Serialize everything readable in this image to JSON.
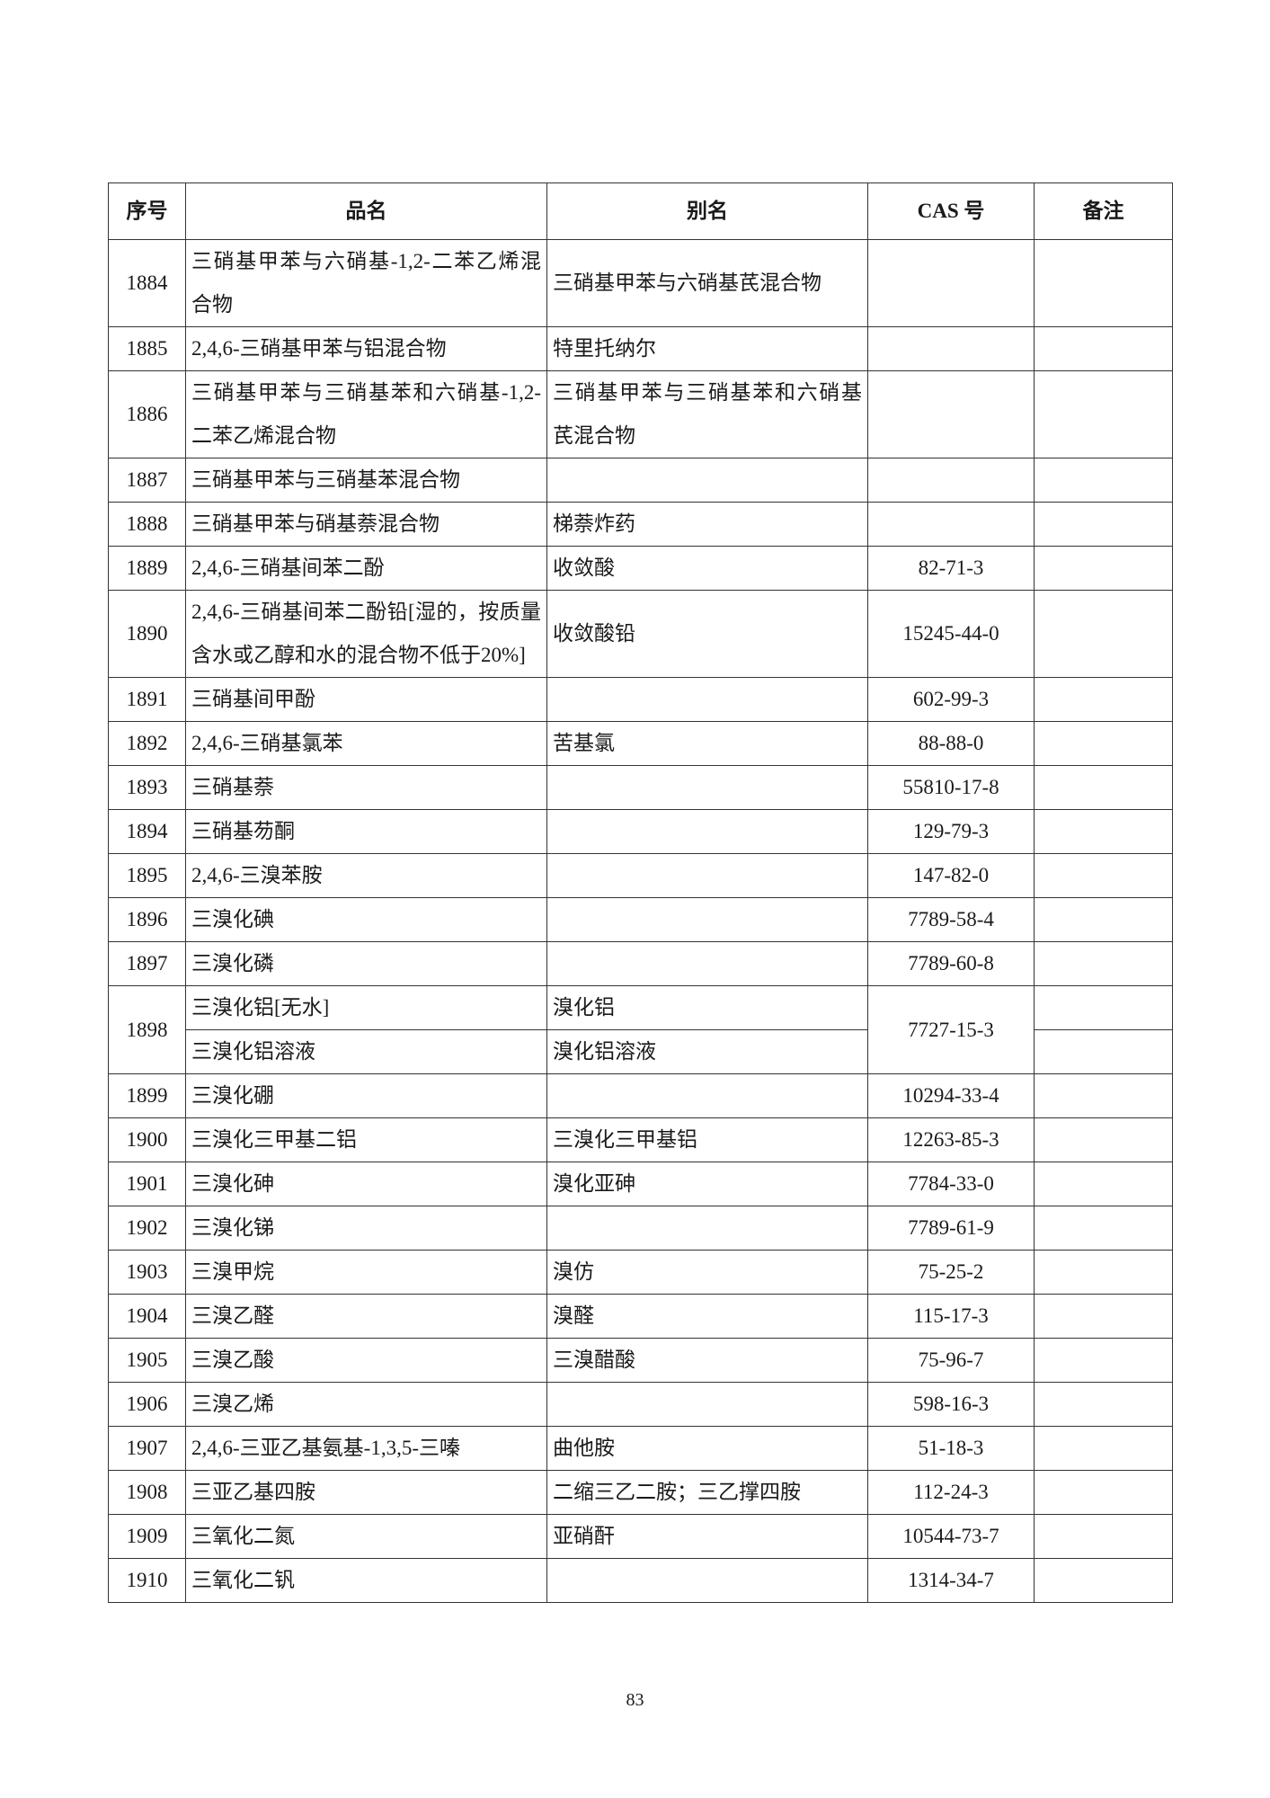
{
  "header": {
    "seq": "序号",
    "name": "品名",
    "alias": "别名",
    "cas": "CAS 号",
    "remark": "备注"
  },
  "rows": [
    {
      "seq": "1884",
      "name": "三硝基甲苯与六硝基-1,2-二苯乙烯混合物",
      "alias": "三硝基甲苯与六硝基芪混合物",
      "cas": "",
      "remark": ""
    },
    {
      "seq": "1885",
      "name": "2,4,6-三硝基甲苯与铝混合物",
      "alias": "特里托纳尔",
      "cas": "",
      "remark": ""
    },
    {
      "seq": "1886",
      "name": "三硝基甲苯与三硝基苯和六硝基-1,2-二苯乙烯混合物",
      "alias": "三硝基甲苯与三硝基苯和六硝基芪混合物",
      "cas": "",
      "remark": ""
    },
    {
      "seq": "1887",
      "name": "三硝基甲苯与三硝基苯混合物",
      "alias": "",
      "cas": "",
      "remark": ""
    },
    {
      "seq": "1888",
      "name": "三硝基甲苯与硝基萘混合物",
      "alias": "梯萘炸药",
      "cas": "",
      "remark": ""
    },
    {
      "seq": "1889",
      "name": "2,4,6-三硝基间苯二酚",
      "alias": "收敛酸",
      "cas": "82-71-3",
      "remark": ""
    },
    {
      "seq": "1890",
      "name": "2,4,6-三硝基间苯二酚铅[湿的，按质量含水或乙醇和水的混合物不低于20%]",
      "alias": "收敛酸铅",
      "cas": "15245-44-0",
      "remark": ""
    },
    {
      "seq": "1891",
      "name": "三硝基间甲酚",
      "alias": "",
      "cas": "602-99-3",
      "remark": ""
    },
    {
      "seq": "1892",
      "name": "2,4,6-三硝基氯苯",
      "alias": "苦基氯",
      "cas": "88-88-0",
      "remark": ""
    },
    {
      "seq": "1893",
      "name": "三硝基萘",
      "alias": "",
      "cas": "55810-17-8",
      "remark": ""
    },
    {
      "seq": "1894",
      "name": "三硝基芴酮",
      "alias": "",
      "cas": "129-79-3",
      "remark": ""
    },
    {
      "seq": "1895",
      "name": "2,4,6-三溴苯胺",
      "alias": "",
      "cas": "147-82-0",
      "remark": ""
    },
    {
      "seq": "1896",
      "name": "三溴化碘",
      "alias": "",
      "cas": "7789-58-4",
      "remark": ""
    },
    {
      "seq": "1897",
      "name": "三溴化磷",
      "alias": "",
      "cas": "7789-60-8",
      "remark": ""
    },
    {
      "seq": "1898",
      "cas": "7727-15-3",
      "sub": [
        {
          "name": "三溴化铝[无水]",
          "alias": "溴化铝",
          "remark": ""
        },
        {
          "name": "三溴化铝溶液",
          "alias": "溴化铝溶液",
          "remark": ""
        }
      ]
    },
    {
      "seq": "1899",
      "name": "三溴化硼",
      "alias": "",
      "cas": "10294-33-4",
      "remark": ""
    },
    {
      "seq": "1900",
      "name": "三溴化三甲基二铝",
      "alias": "三溴化三甲基铝",
      "cas": "12263-85-3",
      "remark": ""
    },
    {
      "seq": "1901",
      "name": "三溴化砷",
      "alias": "溴化亚砷",
      "cas": "7784-33-0",
      "remark": ""
    },
    {
      "seq": "1902",
      "name": "三溴化锑",
      "alias": "",
      "cas": "7789-61-9",
      "remark": ""
    },
    {
      "seq": "1903",
      "name": "三溴甲烷",
      "alias": "溴仿",
      "cas": "75-25-2",
      "remark": ""
    },
    {
      "seq": "1904",
      "name": "三溴乙醛",
      "alias": "溴醛",
      "cas": "115-17-3",
      "remark": ""
    },
    {
      "seq": "1905",
      "name": "三溴乙酸",
      "alias": "三溴醋酸",
      "cas": "75-96-7",
      "remark": ""
    },
    {
      "seq": "1906",
      "name": "三溴乙烯",
      "alias": "",
      "cas": "598-16-3",
      "remark": ""
    },
    {
      "seq": "1907",
      "name": "2,4,6-三亚乙基氨基-1,3,5-三嗪",
      "alias": "曲他胺",
      "cas": "51-18-3",
      "remark": ""
    },
    {
      "seq": "1908",
      "name": "三亚乙基四胺",
      "alias": "二缩三乙二胺；三乙撑四胺",
      "cas": "112-24-3",
      "remark": ""
    },
    {
      "seq": "1909",
      "name": "三氧化二氮",
      "alias": "亚硝酐",
      "cas": "10544-73-7",
      "remark": ""
    },
    {
      "seq": "1910",
      "name": "三氧化二钒",
      "alias": "",
      "cas": "1314-34-7",
      "remark": ""
    }
  ],
  "footer": {
    "page_number": "83"
  }
}
